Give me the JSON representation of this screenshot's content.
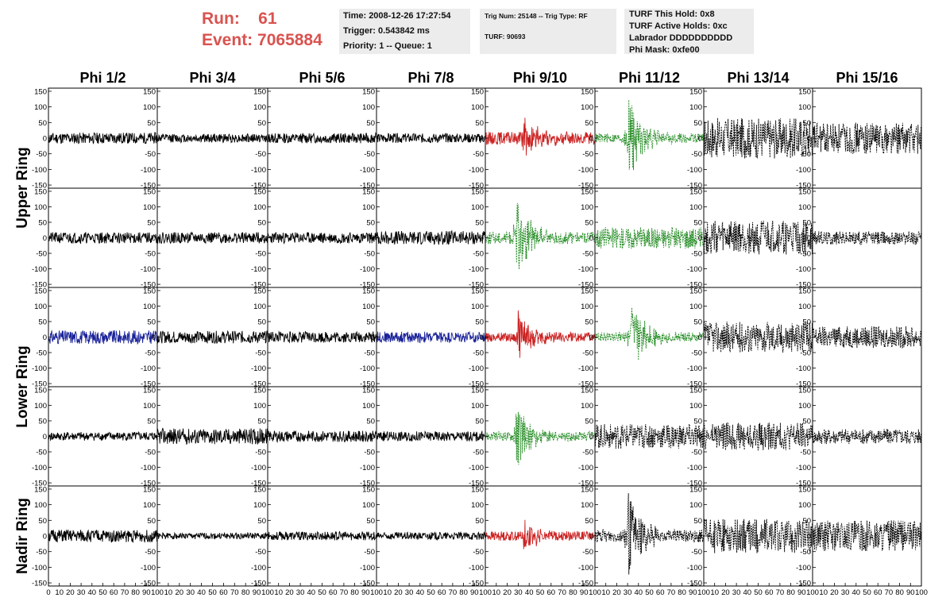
{
  "run_info": {
    "run_label": "Run:",
    "run_value": "61",
    "event_label": "Event:",
    "event_value": "7065884"
  },
  "time_box": {
    "time": "Time: 2008-12-26 17:27:54",
    "trigger": "Trigger: 0.543842 ms",
    "priority": "Priority: 1 -- Queue: 1"
  },
  "trig_box": {
    "trig": "Trig Num: 25148 -- Trig Type: RF",
    "turf": "TURF: 90693"
  },
  "turf_box": {
    "this_hold": "TURF This Hold: 0x8",
    "active_holds": "TURF Active Holds: 0xc",
    "labrador": "Labrador DDDDDDDDDD",
    "phi_mask": "Phi Mask: 0xfe00"
  },
  "chart_data": {
    "type": "line",
    "columns": [
      "Phi 1/2",
      "Phi 3/4",
      "Phi 5/6",
      "Phi 7/8",
      "Phi 9/10",
      "Phi 11/12",
      "Phi 13/14",
      "Phi 15/16"
    ],
    "ring_labels": [
      "Upper Ring",
      "Lower Ring",
      "Nadir Ring"
    ],
    "rows": 5,
    "xlim": [
      0,
      100
    ],
    "ylim": [
      -160,
      160
    ],
    "y_ticks": [
      150,
      100,
      50,
      0,
      -50,
      -100,
      -150
    ],
    "x_ticks": [
      "0",
      "10",
      "20",
      "30",
      "40",
      "50",
      "60",
      "70",
      "80",
      "90",
      "100"
    ],
    "colors": {
      "normal": "#000000",
      "red": "#cc2222",
      "green": "#228B22",
      "blue": "#1a2299"
    },
    "panels": [
      [
        {
          "color": "normal",
          "style": "solid",
          "amp": 18,
          "burst_at": null,
          "burst_amp": 0,
          "seed": 11
        },
        {
          "color": "normal",
          "style": "solid",
          "amp": 14,
          "burst_at": null,
          "burst_amp": 0,
          "seed": 12
        },
        {
          "color": "normal",
          "style": "solid",
          "amp": 16,
          "burst_at": null,
          "burst_amp": 0,
          "seed": 13
        },
        {
          "color": "normal",
          "style": "solid",
          "amp": 15,
          "burst_at": null,
          "burst_amp": 0,
          "seed": 14
        },
        {
          "color": "red",
          "style": "solid",
          "amp": 20,
          "burst_at": 33,
          "burst_amp": 75,
          "seed": 15
        },
        {
          "color": "green",
          "style": "dashed",
          "amp": 15,
          "burst_at": 30,
          "burst_amp": 150,
          "seed": 16
        },
        {
          "color": "normal",
          "style": "dashed",
          "amp": 65,
          "burst_at": null,
          "burst_amp": 0,
          "seed": 17
        },
        {
          "color": "normal",
          "style": "dashed",
          "amp": 50,
          "burst_at": null,
          "burst_amp": 0,
          "seed": 18
        }
      ],
      [
        {
          "color": "normal",
          "style": "solid",
          "amp": 18,
          "burst_at": null,
          "burst_amp": 0,
          "seed": 21
        },
        {
          "color": "normal",
          "style": "solid",
          "amp": 18,
          "burst_at": null,
          "burst_amp": 0,
          "seed": 22
        },
        {
          "color": "normal",
          "style": "solid",
          "amp": 18,
          "burst_at": null,
          "burst_amp": 0,
          "seed": 23
        },
        {
          "color": "normal",
          "style": "solid",
          "amp": 22,
          "burst_at": null,
          "burst_amp": 0,
          "seed": 24
        },
        {
          "color": "green",
          "style": "dashed",
          "amp": 20,
          "burst_at": 28,
          "burst_amp": 130,
          "seed": 25
        },
        {
          "color": "green",
          "style": "dashed",
          "amp": 35,
          "burst_at": null,
          "burst_amp": 0,
          "seed": 26
        },
        {
          "color": "normal",
          "style": "dashed",
          "amp": 55,
          "burst_at": null,
          "burst_amp": 0,
          "seed": 27
        },
        {
          "color": "normal",
          "style": "dashed",
          "amp": 22,
          "burst_at": null,
          "burst_amp": 0,
          "seed": 28
        }
      ],
      [
        {
          "color": "blue",
          "style": "solid",
          "amp": 22,
          "burst_at": null,
          "burst_amp": 0,
          "seed": 31
        },
        {
          "color": "normal",
          "style": "solid",
          "amp": 20,
          "burst_at": null,
          "burst_amp": 0,
          "seed": 32
        },
        {
          "color": "normal",
          "style": "solid",
          "amp": 18,
          "burst_at": null,
          "burst_amp": 0,
          "seed": 33
        },
        {
          "color": "blue",
          "style": "solid",
          "amp": 18,
          "burst_at": null,
          "burst_amp": 0,
          "seed": 34
        },
        {
          "color": "red",
          "style": "solid",
          "amp": 15,
          "burst_at": 30,
          "burst_amp": 80,
          "seed": 35
        },
        {
          "color": "green",
          "style": "dashed",
          "amp": 15,
          "burst_at": 33,
          "burst_amp": 120,
          "seed": 36
        },
        {
          "color": "normal",
          "style": "dashed",
          "amp": 50,
          "burst_at": null,
          "burst_amp": 0,
          "seed": 37
        },
        {
          "color": "normal",
          "style": "dashed",
          "amp": 35,
          "burst_at": null,
          "burst_amp": 0,
          "seed": 38
        }
      ],
      [
        {
          "color": "normal",
          "style": "solid",
          "amp": 14,
          "burst_at": null,
          "burst_amp": 0,
          "seed": 41
        },
        {
          "color": "normal",
          "style": "solid",
          "amp": 26,
          "burst_at": null,
          "burst_amp": 0,
          "seed": 42
        },
        {
          "color": "normal",
          "style": "solid",
          "amp": 18,
          "burst_at": null,
          "burst_amp": 0,
          "seed": 43
        },
        {
          "color": "normal",
          "style": "solid",
          "amp": 16,
          "burst_at": null,
          "burst_amp": 0,
          "seed": 44
        },
        {
          "color": "green",
          "style": "dashed",
          "amp": 15,
          "burst_at": 28,
          "burst_amp": 110,
          "seed": 45
        },
        {
          "color": "normal",
          "style": "dashed",
          "amp": 40,
          "burst_at": null,
          "burst_amp": 0,
          "seed": 46
        },
        {
          "color": "normal",
          "style": "dashed",
          "amp": 45,
          "burst_at": null,
          "burst_amp": 0,
          "seed": 47
        },
        {
          "color": "normal",
          "style": "dashed",
          "amp": 25,
          "burst_at": null,
          "burst_amp": 0,
          "seed": 48
        }
      ],
      [
        {
          "color": "normal",
          "style": "solid",
          "amp": 20,
          "burst_at": null,
          "burst_amp": 0,
          "seed": 51
        },
        {
          "color": "normal",
          "style": "solid",
          "amp": 10,
          "burst_at": null,
          "burst_amp": 0,
          "seed": 52
        },
        {
          "color": "normal",
          "style": "solid",
          "amp": 14,
          "burst_at": null,
          "burst_amp": 0,
          "seed": 53
        },
        {
          "color": "normal",
          "style": "solid",
          "amp": 12,
          "burst_at": null,
          "burst_amp": 0,
          "seed": 54
        },
        {
          "color": "red",
          "style": "solid",
          "amp": 15,
          "burst_at": 35,
          "burst_amp": 55,
          "seed": 55
        },
        {
          "color": "normal",
          "style": "dashed",
          "amp": 20,
          "burst_at": 30,
          "burst_amp": 150,
          "seed": 56
        },
        {
          "color": "normal",
          "style": "dashed",
          "amp": 55,
          "burst_at": null,
          "burst_amp": 0,
          "seed": 57
        },
        {
          "color": "normal",
          "style": "dashed",
          "amp": 50,
          "burst_at": null,
          "burst_amp": 0,
          "seed": 58
        }
      ]
    ]
  }
}
